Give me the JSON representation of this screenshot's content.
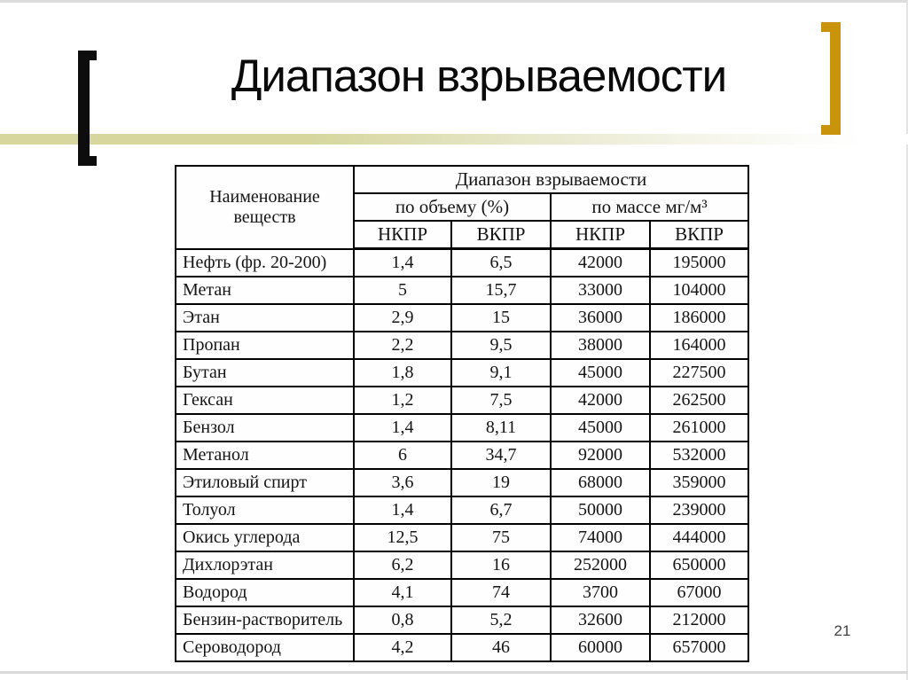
{
  "slide": {
    "title": "Диапазон взрываемости",
    "page_number": "21",
    "accent_colors": {
      "left_bracket": "#0d0d0d",
      "right_bracket": "#c9940c",
      "band": "#d6d69e"
    }
  },
  "table": {
    "header": {
      "name_col": "Наименование веществ",
      "group_title": "Диапазон взрываемости",
      "subgroups": [
        {
          "label": "по объему (%)"
        },
        {
          "label": "по массе мг/м³"
        }
      ],
      "sub_cols": [
        "НКПР",
        "ВКПР",
        "НКПР",
        "ВКПР"
      ]
    },
    "rows": [
      {
        "name": "Нефть (фр. 20-200)",
        "values": [
          "1,4",
          "6,5",
          "42000",
          "195000"
        ]
      },
      {
        "name": "Метан",
        "values": [
          "5",
          "15,7",
          "33000",
          "104000"
        ]
      },
      {
        "name": "Этан",
        "values": [
          "2,9",
          "15",
          "36000",
          "186000"
        ]
      },
      {
        "name": "Пропан",
        "values": [
          "2,2",
          "9,5",
          "38000",
          "164000"
        ]
      },
      {
        "name": "Бутан",
        "values": [
          "1,8",
          "9,1",
          "45000",
          "227500"
        ]
      },
      {
        "name": "Гексан",
        "values": [
          "1,2",
          "7,5",
          "42000",
          "262500"
        ]
      },
      {
        "name": "Бензол",
        "values": [
          "1,4",
          "8,11",
          "45000",
          "261000"
        ]
      },
      {
        "name": "Метанол",
        "values": [
          "6",
          "34,7",
          "92000",
          "532000"
        ]
      },
      {
        "name": "Этиловый спирт",
        "values": [
          "3,6",
          "19",
          "68000",
          "359000"
        ]
      },
      {
        "name": "Толуол",
        "values": [
          "1,4",
          "6,7",
          "50000",
          "239000"
        ]
      },
      {
        "name": "Окись углерода",
        "values": [
          "12,5",
          "75",
          "74000",
          "444000"
        ]
      },
      {
        "name": "Дихлорэтан",
        "values": [
          "6,2",
          "16",
          "252000",
          "650000"
        ]
      },
      {
        "name": "Водород",
        "values": [
          "4,1",
          "74",
          "3700",
          "67000"
        ]
      },
      {
        "name": "Бензин-растворитель",
        "values": [
          "0,8",
          "5,2",
          "32600",
          "212000"
        ]
      },
      {
        "name": "Сероводород",
        "values": [
          "4,2",
          "46",
          "60000",
          "657000"
        ]
      }
    ]
  }
}
